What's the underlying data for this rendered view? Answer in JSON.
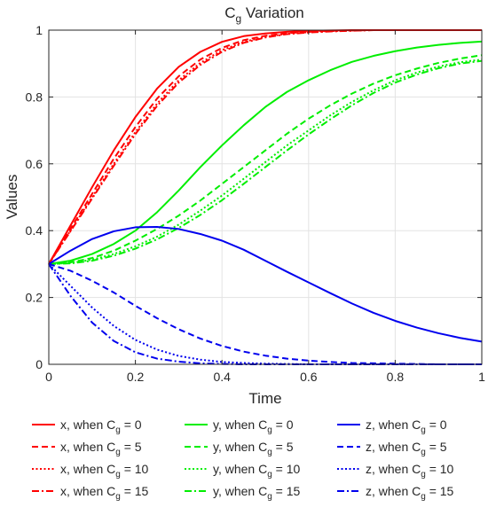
{
  "chart_data": {
    "type": "line",
    "title_main": "C",
    "title_sub": "g",
    "title_rest": " Variation",
    "xlabel": "Time",
    "ylabel": "Values",
    "xlim": [
      0,
      1
    ],
    "ylim": [
      0,
      1
    ],
    "xticks": [
      0,
      0.2,
      0.4,
      0.6,
      0.8,
      1
    ],
    "xtick_labels": [
      "0",
      "0.2",
      "0.4",
      "0.6",
      "0.8",
      "1"
    ],
    "yticks": [
      0,
      0.2,
      0.4,
      0.6,
      0.8,
      1
    ],
    "ytick_labels": [
      "0",
      "0.2",
      "0.4",
      "0.6",
      "0.8",
      "1"
    ],
    "grid": true,
    "legend_position": "bottom-outside",
    "x": [
      0,
      0.05,
      0.1,
      0.15,
      0.2,
      0.25,
      0.3,
      0.35,
      0.4,
      0.45,
      0.5,
      0.55,
      0.6,
      0.65,
      0.7,
      0.75,
      0.8,
      0.85,
      0.9,
      0.95,
      1
    ],
    "series": [
      {
        "name_pre": "x, when C",
        "name_sub": "g",
        "name_post": " = 0",
        "color": "#ff0000",
        "dash": "solid",
        "values": [
          0.3,
          0.415,
          0.53,
          0.64,
          0.74,
          0.825,
          0.89,
          0.935,
          0.965,
          0.982,
          0.99,
          0.995,
          0.998,
          0.999,
          1,
          1,
          1,
          1,
          1,
          1,
          1
        ]
      },
      {
        "name_pre": "x, when C",
        "name_sub": "g",
        "name_post": " = 5",
        "color": "#ff0000",
        "dash": "dashed",
        "values": [
          0.3,
          0.405,
          0.51,
          0.615,
          0.71,
          0.795,
          0.862,
          0.912,
          0.947,
          0.97,
          0.983,
          0.991,
          0.995,
          0.998,
          0.999,
          1,
          1,
          1,
          1,
          1,
          1
        ]
      },
      {
        "name_pre": "x, when C",
        "name_sub": "g",
        "name_post": " = 10",
        "color": "#ff0000",
        "dash": "dotted",
        "values": [
          0.3,
          0.4,
          0.5,
          0.6,
          0.695,
          0.78,
          0.85,
          0.902,
          0.94,
          0.965,
          0.98,
          0.989,
          0.994,
          0.997,
          0.999,
          1,
          1,
          1,
          1,
          1,
          1
        ]
      },
      {
        "name_pre": "x, when C",
        "name_sub": "g",
        "name_post": " = 15",
        "color": "#ff0000",
        "dash": "dashdot",
        "values": [
          0.3,
          0.398,
          0.496,
          0.594,
          0.689,
          0.773,
          0.843,
          0.896,
          0.935,
          0.962,
          0.978,
          0.988,
          0.993,
          0.996,
          0.998,
          1,
          1,
          1,
          1,
          1,
          1
        ]
      },
      {
        "name_pre": "y, when C",
        "name_sub": "g",
        "name_post": " = 0",
        "color": "#00ee00",
        "dash": "solid",
        "values": [
          0.3,
          0.31,
          0.33,
          0.36,
          0.4,
          0.455,
          0.52,
          0.59,
          0.655,
          0.715,
          0.77,
          0.815,
          0.85,
          0.88,
          0.905,
          0.923,
          0.937,
          0.948,
          0.956,
          0.962,
          0.966
        ]
      },
      {
        "name_pre": "y, when C",
        "name_sub": "g",
        "name_post": " = 5",
        "color": "#00ee00",
        "dash": "dashed",
        "values": [
          0.3,
          0.305,
          0.318,
          0.34,
          0.37,
          0.405,
          0.445,
          0.49,
          0.54,
          0.59,
          0.64,
          0.69,
          0.735,
          0.775,
          0.81,
          0.84,
          0.865,
          0.885,
          0.902,
          0.915,
          0.925
        ]
      },
      {
        "name_pre": "y, when C",
        "name_sub": "g",
        "name_post": " = 10",
        "color": "#00ee00",
        "dash": "dotted",
        "values": [
          0.3,
          0.303,
          0.313,
          0.33,
          0.353,
          0.382,
          0.418,
          0.46,
          0.505,
          0.555,
          0.605,
          0.655,
          0.7,
          0.745,
          0.785,
          0.82,
          0.85,
          0.873,
          0.891,
          0.904,
          0.912
        ]
      },
      {
        "name_pre": "y, when C",
        "name_sub": "g",
        "name_post": " = 15",
        "color": "#00ee00",
        "dash": "dashdot",
        "values": [
          0.3,
          0.302,
          0.31,
          0.325,
          0.346,
          0.374,
          0.408,
          0.447,
          0.491,
          0.54,
          0.59,
          0.64,
          0.688,
          0.733,
          0.775,
          0.812,
          0.843,
          0.867,
          0.886,
          0.9,
          0.908
        ]
      },
      {
        "name_pre": "z, when C",
        "name_sub": "g",
        "name_post": " = 0",
        "color": "#0000ee",
        "dash": "solid",
        "values": [
          0.3,
          0.34,
          0.375,
          0.398,
          0.41,
          0.411,
          0.405,
          0.39,
          0.37,
          0.343,
          0.31,
          0.277,
          0.245,
          0.213,
          0.182,
          0.154,
          0.13,
          0.11,
          0.093,
          0.079,
          0.068
        ]
      },
      {
        "name_pre": "z, when C",
        "name_sub": "g",
        "name_post": " = 5",
        "color": "#0000ee",
        "dash": "dashed",
        "values": [
          0.3,
          0.28,
          0.25,
          0.215,
          0.175,
          0.138,
          0.105,
          0.077,
          0.055,
          0.038,
          0.026,
          0.017,
          0.011,
          0.007,
          0.004,
          0.003,
          0.002,
          0.001,
          0,
          0,
          0
        ]
      },
      {
        "name_pre": "z, when C",
        "name_sub": "g",
        "name_post": " = 10",
        "color": "#0000ee",
        "dash": "dotted",
        "values": [
          0.3,
          0.235,
          0.17,
          0.115,
          0.073,
          0.044,
          0.025,
          0.014,
          0.007,
          0.004,
          0.002,
          0.001,
          0,
          0,
          0,
          0,
          0,
          0,
          0,
          0,
          0
        ]
      },
      {
        "name_pre": "z, when C",
        "name_sub": "g",
        "name_post": " = 15",
        "color": "#0000ee",
        "dash": "dashdot",
        "values": [
          0.3,
          0.205,
          0.125,
          0.07,
          0.036,
          0.017,
          0.008,
          0.003,
          0.001,
          0,
          0,
          0,
          0,
          0,
          0,
          0,
          0,
          0,
          0,
          0,
          0
        ]
      }
    ]
  }
}
